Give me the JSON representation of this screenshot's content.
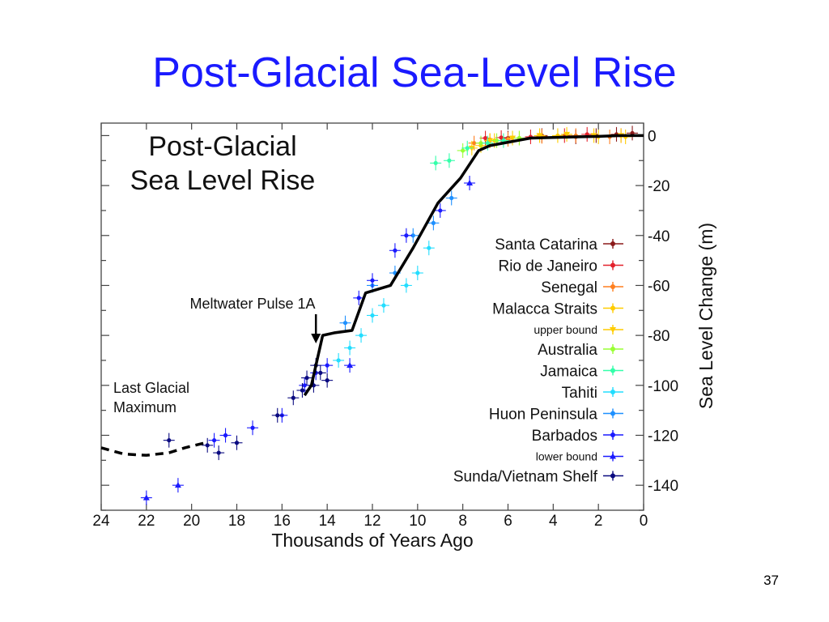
{
  "slide": {
    "title": "Post-Glacial Sea-Level Rise",
    "number": "37"
  },
  "chart_data": {
    "type": "scatter",
    "title": "Post-Glacial\nSea Level Rise",
    "xlabel": "Thousands of Years Ago",
    "ylabel": "Sea Level Change (m)",
    "xlim": [
      24,
      0
    ],
    "ylim": [
      -150,
      5
    ],
    "x_ticks": [
      24,
      22,
      20,
      18,
      16,
      14,
      12,
      10,
      8,
      6,
      4,
      2,
      0
    ],
    "y_ticks": [
      0,
      -20,
      -40,
      -60,
      -80,
      -100,
      -120,
      -140
    ],
    "legend_position": "right",
    "annotations": [
      {
        "text": "Meltwater Pulse 1A",
        "x": 14.5,
        "y": -81,
        "arrow": "down"
      },
      {
        "text": "Last Glacial\nMaximum",
        "x": 22,
        "y": -110
      }
    ],
    "curve": {
      "color": "#000000",
      "x": [
        15,
        14.7,
        14.2,
        13.7,
        12.9,
        12.3,
        11.2,
        10.2,
        9.1,
        8.1,
        7.3,
        6.8,
        5,
        3,
        2,
        1,
        0
      ],
      "y": [
        -104,
        -100,
        -80,
        -79,
        -78,
        -63,
        -60,
        -45,
        -27,
        -17,
        -6,
        -4,
        -1,
        -0.5,
        -0.3,
        0,
        0
      ]
    },
    "lgm_dashed": {
      "color": "#000000",
      "x": [
        24,
        23,
        22,
        21,
        20.3,
        19.4
      ],
      "y": [
        -125,
        -127.5,
        -128,
        -127,
        -125,
        -123
      ]
    },
    "series": [
      {
        "name": "Santa Catarina",
        "color": "#8b1a1a",
        "marker": "dot",
        "points": [
          [
            0.5,
            1
          ],
          [
            1.2,
            0.5
          ],
          [
            2.1,
            0
          ],
          [
            3.0,
            -0.5
          ],
          [
            4.5,
            0
          ],
          [
            6.0,
            -1
          ]
        ]
      },
      {
        "name": "Rio de Janeiro",
        "color": "#e3212b",
        "marker": "dot",
        "points": [
          [
            1.0,
            0
          ],
          [
            2.5,
            0.5
          ],
          [
            3.5,
            0
          ],
          [
            5.0,
            -0.5
          ],
          [
            6.3,
            -0.8
          ],
          [
            7.0,
            -1
          ]
        ]
      },
      {
        "name": "Senegal",
        "color": "#ff7f1f",
        "marker": "dot",
        "points": [
          [
            1.5,
            -0.5
          ],
          [
            3.0,
            0
          ],
          [
            4.5,
            -0.3
          ],
          [
            6.0,
            -1.5
          ],
          [
            6.8,
            -2
          ],
          [
            7.5,
            -3
          ]
        ]
      },
      {
        "name": "Malacca Straits",
        "color": "#ffcc00",
        "marker": "dot",
        "points": [
          [
            0.8,
            -0.5
          ],
          [
            2.0,
            -0.5
          ],
          [
            3.8,
            0
          ],
          [
            5.5,
            -1
          ],
          [
            6.6,
            -2
          ],
          [
            7.2,
            -4
          ]
        ]
      },
      {
        "name": "upper bound",
        "color": "#ffcc00",
        "marker": "triangle-down",
        "points": [
          [
            1.0,
            0
          ],
          [
            2.2,
            0
          ],
          [
            3.4,
            0.5
          ],
          [
            4.6,
            0
          ],
          [
            5.8,
            -1
          ],
          [
            6.8,
            -2
          ],
          [
            7.6,
            -5
          ]
        ]
      },
      {
        "name": "Australia",
        "color": "#99ff33",
        "marker": "dot",
        "points": [
          [
            5.5,
            -1
          ],
          [
            6.5,
            -2
          ],
          [
            7.2,
            -3
          ],
          [
            8.0,
            -6
          ]
        ]
      },
      {
        "name": "Jamaica",
        "color": "#33ffaa",
        "marker": "dot",
        "points": [
          [
            6.2,
            -2
          ],
          [
            6.9,
            -3
          ],
          [
            7.8,
            -5
          ],
          [
            8.6,
            -10
          ],
          [
            9.2,
            -11
          ]
        ]
      },
      {
        "name": "Tahiti",
        "color": "#22ddff",
        "marker": "dot",
        "points": [
          [
            9.5,
            -45
          ],
          [
            10.0,
            -55
          ],
          [
            10.5,
            -60
          ],
          [
            11.5,
            -68
          ],
          [
            12.0,
            -72
          ],
          [
            12.5,
            -80
          ],
          [
            13.0,
            -85
          ],
          [
            13.5,
            -90
          ]
        ]
      },
      {
        "name": "Huon Peninsula",
        "color": "#1e90ff",
        "marker": "dot",
        "points": [
          [
            8.5,
            -25
          ],
          [
            9.3,
            -35
          ],
          [
            10.2,
            -40
          ],
          [
            11.0,
            -55
          ],
          [
            12.0,
            -60
          ],
          [
            13.2,
            -75
          ]
        ]
      },
      {
        "name": "Barbados",
        "color": "#1a1aff",
        "marker": "dot",
        "points": [
          [
            9.0,
            -30
          ],
          [
            10.5,
            -40
          ],
          [
            11.0,
            -46
          ],
          [
            12.0,
            -58
          ],
          [
            12.6,
            -65
          ],
          [
            14.0,
            -92
          ],
          [
            14.5,
            -95
          ],
          [
            15.0,
            -100
          ],
          [
            16.0,
            -112
          ],
          [
            17.3,
            -117
          ],
          [
            18.5,
            -120
          ],
          [
            19.0,
            -122
          ]
        ]
      },
      {
        "name": "lower bound",
        "color": "#1a1aff",
        "marker": "triangle-up",
        "points": [
          [
            22,
            -145
          ],
          [
            20.6,
            -140
          ],
          [
            13.0,
            -92
          ],
          [
            7.7,
            -19
          ]
        ]
      },
      {
        "name": "Sunda/Vietnam Shelf",
        "color": "#0a0a80",
        "marker": "dot",
        "points": [
          [
            14.3,
            -95
          ],
          [
            14.6,
            -100
          ],
          [
            14.9,
            -97
          ],
          [
            15.1,
            -102
          ],
          [
            14.5,
            -92
          ],
          [
            14.0,
            -98
          ],
          [
            15.5,
            -105
          ],
          [
            16.2,
            -112
          ],
          [
            18.0,
            -123
          ],
          [
            18.8,
            -127
          ],
          [
            19.3,
            -124
          ],
          [
            21.0,
            -122
          ]
        ]
      }
    ]
  }
}
